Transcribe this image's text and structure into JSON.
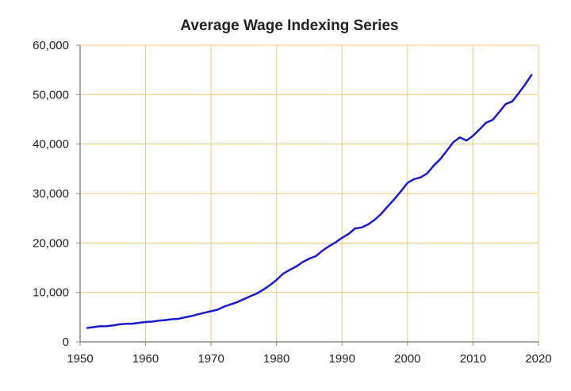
{
  "chart_data": {
    "type": "line",
    "title": "Average Wage Indexing Series",
    "xlabel": "",
    "ylabel": "",
    "xlim": [
      1950,
      2020
    ],
    "ylim": [
      0,
      60000
    ],
    "x_ticks": [
      "1950",
      "1960",
      "1970",
      "1980",
      "1990",
      "2000",
      "2010",
      "2020"
    ],
    "y_ticks": [
      "0",
      "10,000",
      "20,000",
      "30,000",
      "40,000",
      "50,000",
      "60,000"
    ],
    "grid": true,
    "legend": "none",
    "colors": {
      "line": "#1a1acc",
      "grid": "#f0c878",
      "axis": "#888888"
    },
    "series": [
      {
        "x": [
          1951,
          1952,
          1953,
          1954,
          1955,
          1956,
          1957,
          1958,
          1959,
          1960,
          1961,
          1962,
          1963,
          1964,
          1965,
          1966,
          1967,
          1968,
          1969,
          1970,
          1971,
          1972,
          1973,
          1974,
          1975,
          1976,
          1977,
          1978,
          1979,
          1980,
          1981,
          1982,
          1983,
          1984,
          1985,
          1986,
          1987,
          1988,
          1989,
          1990,
          1991,
          1992,
          1993,
          1994,
          1995,
          1996,
          1997,
          1998,
          1999,
          2000,
          2001,
          2002,
          2003,
          2004,
          2005,
          2006,
          2007,
          2008,
          2009,
          2010,
          2011,
          2012,
          2013,
          2014,
          2015,
          2016,
          2017,
          2018,
          2019
        ],
        "y": [
          2799,
          2973,
          3139,
          3156,
          3301,
          3532,
          3642,
          3674,
          3856,
          4007,
          4087,
          4291,
          4397,
          4576,
          4659,
          4938,
          5213,
          5572,
          5894,
          6186,
          6497,
          7134,
          7580,
          8031,
          8631,
          9226,
          9779,
          10556,
          11479,
          12513,
          13773,
          14531,
          15239,
          16135,
          16823,
          17322,
          18427,
          19334,
          20100,
          21028,
          21812,
          22935,
          23133,
          23754,
          24706,
          25914,
          27426,
          28861,
          30470,
          32155,
          32922,
          33252,
          34065,
          35649,
          36953,
          38651,
          40405,
          41335,
          40712,
          41674,
          42980,
          44322,
          44888,
          46482,
          48099,
          48642,
          50322,
          52146,
          54100
        ]
      }
    ]
  }
}
